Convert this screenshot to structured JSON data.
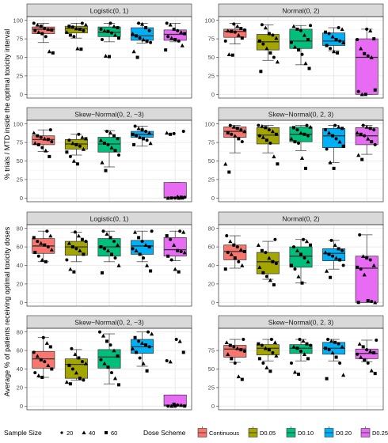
{
  "figure": {
    "top_ylabel": "% trials / MTD inside the optimal toxicity interval",
    "bottom_ylabel": "Average % of patients receiving optimal toxicity doses"
  },
  "legend": {
    "size_title": "Sample Size",
    "sizes": [
      {
        "label": "20",
        "shape": "circle-small"
      },
      {
        "label": "40",
        "shape": "triangle"
      },
      {
        "label": "60",
        "shape": "square"
      }
    ],
    "scheme_title": "Dose Scheme",
    "schemes": [
      {
        "label": "Continuous",
        "color": "#F8766D"
      },
      {
        "label": "D0.05",
        "color": "#A3A500"
      },
      {
        "label": "D0.10",
        "color": "#00BF7D"
      },
      {
        "label": "D0.20",
        "color": "#00B0F6"
      },
      {
        "label": "D0.25",
        "color": "#E76BF3"
      }
    ]
  },
  "chart_data": [
    {
      "type": "boxplot",
      "panel": "top-left",
      "title": "Logistic(0, 1)",
      "ylim": [
        0,
        100
      ],
      "yticks": [
        0,
        25,
        50,
        75,
        100
      ],
      "categories": [
        "Continuous",
        "D0.05",
        "D0.10",
        "D0.20",
        "D0.25"
      ],
      "boxes": [
        {
          "min": 70,
          "q1": 82,
          "median": 88,
          "q3": 91,
          "max": 96
        },
        {
          "min": 76,
          "q1": 83,
          "median": 89,
          "q3": 92,
          "max": 96
        },
        {
          "min": 71,
          "q1": 78,
          "median": 84,
          "q3": 91,
          "max": 96
        },
        {
          "min": 69,
          "q1": 73,
          "median": 79,
          "q3": 90,
          "max": 96
        },
        {
          "min": 71,
          "q1": 73,
          "median": 81,
          "q3": 87,
          "max": 96
        }
      ],
      "points": [
        [
          96,
          94,
          92,
          89,
          88,
          87,
          86,
          84,
          82,
          78,
          58,
          56
        ],
        [
          96,
          94,
          92,
          91,
          89,
          88,
          86,
          84,
          80,
          78,
          62,
          61
        ],
        [
          96,
          92,
          90,
          88,
          86,
          85,
          83,
          80,
          76,
          74,
          52,
          51
        ],
        [
          96,
          95,
          90,
          86,
          82,
          79,
          76,
          74,
          72,
          70,
          58,
          50
        ],
        [
          96,
          94,
          88,
          86,
          84,
          82,
          78,
          76,
          74,
          72,
          66,
          60
        ]
      ]
    },
    {
      "type": "boxplot",
      "panel": "top-right",
      "title": "Normal(0, 2)",
      "ylim": [
        0,
        100
      ],
      "yticks": [
        0,
        25,
        50,
        75,
        100
      ],
      "categories": [
        "Continuous",
        "D0.05",
        "D0.10",
        "D0.20",
        "D0.25"
      ],
      "boxes": [
        {
          "min": 68,
          "q1": 77,
          "median": 85,
          "q3": 88,
          "max": 96
        },
        {
          "min": 46,
          "q1": 60,
          "median": 71,
          "q3": 81,
          "max": 94
        },
        {
          "min": 40,
          "q1": 62,
          "median": 72,
          "q3": 88,
          "max": 93
        },
        {
          "min": 59,
          "q1": 66,
          "median": 72,
          "q3": 83,
          "max": 90
        },
        {
          "min": 0,
          "q1": 0,
          "median": 50,
          "q3": 75,
          "max": 88
        }
      ],
      "points": [
        [
          95,
          92,
          89,
          87,
          86,
          85,
          84,
          80,
          76,
          72,
          54,
          53
        ],
        [
          94,
          90,
          82,
          80,
          76,
          72,
          68,
          62,
          56,
          50,
          44,
          31
        ],
        [
          93,
          92,
          88,
          86,
          80,
          74,
          70,
          64,
          60,
          54,
          42,
          35
        ],
        [
          90,
          88,
          84,
          82,
          78,
          74,
          72,
          70,
          66,
          62,
          58,
          56
        ],
        [
          88,
          86,
          75,
          74,
          62,
          55,
          52,
          50,
          6,
          4,
          0,
          0
        ]
      ]
    },
    {
      "type": "boxplot",
      "panel": "mid-left",
      "title": "Skew−Normal(0, 2, −3)",
      "ylim": [
        0,
        100
      ],
      "yticks": [
        0,
        25,
        50,
        75,
        100
      ],
      "categories": [
        "Continuous",
        "D0.05",
        "D0.10",
        "D0.20",
        "D0.25"
      ],
      "boxes": [
        {
          "min": 63,
          "q1": 72,
          "median": 79,
          "q3": 84,
          "max": 92
        },
        {
          "min": 58,
          "q1": 66,
          "median": 73,
          "q3": 79,
          "max": 86
        },
        {
          "min": 42,
          "q1": 62,
          "median": 73,
          "q3": 82,
          "max": 91
        },
        {
          "min": 70,
          "q1": 82,
          "median": 86,
          "q3": 90,
          "max": 97
        },
        {
          "min": 0,
          "q1": 0,
          "median": 1,
          "q3": 21,
          "max": 21
        }
      ],
      "points": [
        [
          92,
          88,
          84,
          82,
          80,
          79,
          76,
          74,
          72,
          68,
          64,
          56
        ],
        [
          86,
          82,
          80,
          78,
          74,
          72,
          70,
          66,
          62,
          56,
          50,
          46
        ],
        [
          90,
          88,
          84,
          80,
          78,
          74,
          72,
          68,
          64,
          58,
          48,
          37
        ],
        [
          97,
          94,
          92,
          90,
          88,
          86,
          84,
          82,
          80,
          78,
          74,
          72
        ],
        [
          90,
          88,
          86,
          87,
          2,
          1,
          1,
          0,
          0,
          0,
          0,
          0
        ]
      ]
    },
    {
      "type": "boxplot",
      "panel": "mid-right",
      "title": "Skew−Normal(0, 2, 3)",
      "ylim": [
        0,
        100
      ],
      "yticks": [
        0,
        25,
        50,
        75,
        100
      ],
      "categories": [
        "Continuous",
        "D0.05",
        "D0.10",
        "D0.20",
        "D0.25"
      ],
      "boxes": [
        {
          "min": 61,
          "q1": 82,
          "median": 90,
          "q3": 96,
          "max": 98
        },
        {
          "min": 61,
          "q1": 73,
          "median": 85,
          "q3": 95,
          "max": 98
        },
        {
          "min": 64,
          "q1": 76,
          "median": 86,
          "q3": 96,
          "max": 98
        },
        {
          "min": 48,
          "q1": 68,
          "median": 84,
          "q3": 94,
          "max": 98
        },
        {
          "min": 59,
          "q1": 72,
          "median": 84,
          "q3": 95,
          "max": 98
        }
      ],
      "points": [
        [
          98,
          96,
          94,
          92,
          90,
          88,
          86,
          84,
          80,
          76,
          46,
          35
        ],
        [
          98,
          97,
          95,
          92,
          90,
          86,
          84,
          82,
          78,
          74,
          56,
          46
        ],
        [
          98,
          96,
          95,
          92,
          88,
          86,
          84,
          80,
          76,
          74,
          54,
          40
        ],
        [
          98,
          96,
          94,
          92,
          88,
          84,
          80,
          76,
          70,
          66,
          48,
          40
        ],
        [
          98,
          96,
          94,
          92,
          88,
          86,
          84,
          80,
          76,
          72,
          58,
          52
        ]
      ]
    },
    {
      "type": "boxplot",
      "panel": "lower-left",
      "title": "Logistic(0, 1)",
      "ylim": [
        0,
        80
      ],
      "yticks": [
        0,
        20,
        40,
        60,
        80
      ],
      "categories": [
        "Continuous",
        "D0.05",
        "D0.10",
        "D0.20",
        "D0.25"
      ],
      "boxes": [
        {
          "min": 44,
          "q1": 53,
          "median": 61,
          "q3": 69,
          "max": 77
        },
        {
          "min": 44,
          "q1": 51,
          "median": 60,
          "q3": 66,
          "max": 76
        },
        {
          "min": 44,
          "q1": 50,
          "median": 60,
          "q3": 69,
          "max": 77
        },
        {
          "min": 44,
          "q1": 52,
          "median": 61,
          "q3": 67,
          "max": 77
        },
        {
          "min": 45,
          "q1": 50,
          "median": 57,
          "q3": 70,
          "max": 77
        }
      ],
      "points": [
        [
          77,
          72,
          70,
          66,
          64,
          62,
          60,
          57,
          54,
          50,
          46,
          44
        ],
        [
          76,
          72,
          68,
          66,
          64,
          60,
          58,
          56,
          52,
          46,
          36,
          33
        ],
        [
          77,
          74,
          70,
          66,
          62,
          60,
          58,
          56,
          52,
          48,
          40,
          32
        ],
        [
          77,
          76,
          70,
          66,
          62,
          60,
          58,
          56,
          52,
          48,
          40,
          34
        ],
        [
          77,
          76,
          72,
          68,
          62,
          56,
          55,
          54,
          50,
          46,
          36,
          33
        ]
      ]
    },
    {
      "type": "boxplot",
      "panel": "lower-right",
      "title": "Normal(0, 2)",
      "ylim": [
        0,
        80
      ],
      "yticks": [
        0,
        20,
        40,
        60,
        80
      ],
      "categories": [
        "Continuous",
        "D0.05",
        "D0.10",
        "D0.20",
        "D0.25"
      ],
      "boxes": [
        {
          "min": 37,
          "q1": 46,
          "median": 55,
          "q3": 62,
          "max": 72
        },
        {
          "min": 25,
          "q1": 31,
          "median": 44,
          "q3": 54,
          "max": 66
        },
        {
          "min": 21,
          "q1": 38,
          "median": 50,
          "q3": 60,
          "max": 68
        },
        {
          "min": 36,
          "q1": 45,
          "median": 53,
          "q3": 58,
          "max": 67
        },
        {
          "min": 0,
          "q1": 0,
          "median": 37,
          "q3": 50,
          "max": 73
        }
      ],
      "points": [
        [
          72,
          66,
          62,
          60,
          57,
          55,
          54,
          52,
          48,
          44,
          40,
          36
        ],
        [
          68,
          62,
          56,
          54,
          48,
          44,
          42,
          38,
          32,
          28,
          24,
          19
        ],
        [
          68,
          66,
          62,
          60,
          56,
          52,
          48,
          44,
          40,
          36,
          28,
          21
        ],
        [
          67,
          62,
          58,
          56,
          54,
          52,
          50,
          48,
          46,
          40,
          34,
          27
        ],
        [
          73,
          50,
          48,
          46,
          40,
          38,
          36,
          30,
          2,
          1,
          0,
          0
        ]
      ]
    },
    {
      "type": "boxplot",
      "panel": "bottom-left",
      "title": "Skew−Normal(0, 2, −3)",
      "ylim": [
        0,
        80
      ],
      "yticks": [
        0,
        20,
        40,
        60,
        80
      ],
      "categories": [
        "Continuous",
        "D0.05",
        "D0.10",
        "D0.20",
        "D0.25"
      ],
      "boxes": [
        {
          "min": 31,
          "q1": 41,
          "median": 51,
          "q3": 59,
          "max": 74
        },
        {
          "min": 28,
          "q1": 30,
          "median": 45,
          "q3": 51,
          "max": 61
        },
        {
          "min": 24,
          "q1": 41,
          "median": 53,
          "q3": 61,
          "max": 78
        },
        {
          "min": 43,
          "q1": 57,
          "median": 64,
          "q3": 72,
          "max": 80
        },
        {
          "min": 0,
          "q1": 0,
          "median": 1,
          "q3": 12,
          "max": 12
        }
      ],
      "points": [
        [
          74,
          68,
          64,
          58,
          54,
          50,
          48,
          44,
          40,
          36,
          33,
          31
        ],
        [
          62,
          56,
          52,
          48,
          46,
          44,
          40,
          36,
          30,
          28,
          26,
          24
        ],
        [
          80,
          76,
          70,
          66,
          60,
          54,
          50,
          46,
          42,
          36,
          30,
          23
        ],
        [
          80,
          78,
          74,
          70,
          68,
          66,
          64,
          62,
          58,
          52,
          46,
          38
        ],
        [
          72,
          70,
          58,
          49,
          48,
          2,
          1,
          1,
          0,
          0,
          0,
          0
        ]
      ]
    },
    {
      "type": "boxplot",
      "panel": "bottom-right",
      "title": "Skew−Normal(0, 2, 3)",
      "ylim": [
        0,
        100
      ],
      "yticks": [
        0,
        25,
        50,
        75
      ],
      "categories": [
        "Continuous",
        "D0.05",
        "D0.10",
        "D0.20",
        "D0.25"
      ],
      "boxes": [
        {
          "min": 59,
          "q1": 66,
          "median": 77,
          "q3": 82,
          "max": 90
        },
        {
          "min": 61,
          "q1": 69,
          "median": 78,
          "q3": 83,
          "max": 90
        },
        {
          "min": 61,
          "q1": 71,
          "median": 78,
          "q3": 83,
          "max": 90
        },
        {
          "min": 61,
          "q1": 70,
          "median": 78,
          "q3": 86,
          "max": 90
        },
        {
          "min": 60,
          "q1": 64,
          "median": 71,
          "q3": 77,
          "max": 89
        }
      ],
      "points": [
        [
          90,
          86,
          82,
          80,
          78,
          76,
          74,
          70,
          64,
          58,
          40,
          36
        ],
        [
          90,
          86,
          84,
          82,
          78,
          76,
          72,
          68,
          64,
          58,
          52,
          47
        ],
        [
          90,
          88,
          84,
          82,
          80,
          78,
          74,
          70,
          64,
          58,
          46,
          43
        ],
        [
          90,
          88,
          86,
          84,
          80,
          78,
          76,
          72,
          66,
          58,
          42,
          37
        ],
        [
          89,
          84,
          80,
          76,
          74,
          72,
          70,
          66,
          62,
          58,
          48,
          44
        ]
      ]
    }
  ]
}
